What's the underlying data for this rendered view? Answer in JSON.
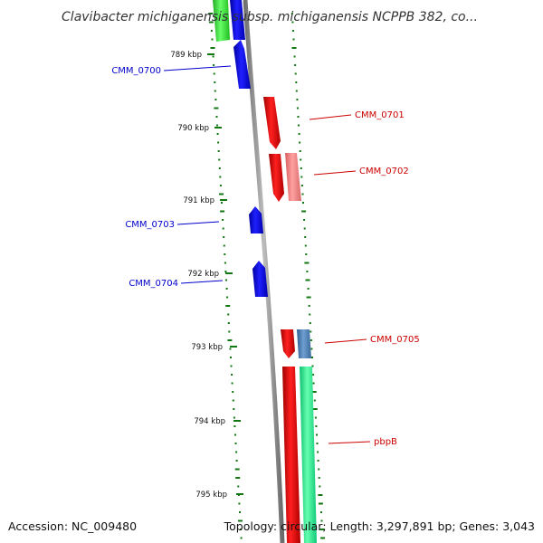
{
  "title": "Clavibacter michiganensis subsp. michiganensis NCPPB 382, co...",
  "footer": {
    "accession": "Accession: NC_009480",
    "summary": "Topology: circular; Length: 3,297,891 bp; Genes: 3,043"
  },
  "ticks": [
    {
      "label": "789 kbp"
    },
    {
      "label": "790 kbp"
    },
    {
      "label": "791 kbp"
    },
    {
      "label": "792 kbp"
    },
    {
      "label": "793 kbp"
    },
    {
      "label": "794 kbp"
    },
    {
      "label": "795 kbp"
    }
  ],
  "genes": [
    {
      "label": "CMM_0700",
      "strand": "reverse",
      "color": "#0000cc"
    },
    {
      "label": "CMM_0701",
      "strand": "forward",
      "color": "#cc0000"
    },
    {
      "label": "CMM_0702",
      "strand": "forward",
      "color": "#cc0000"
    },
    {
      "label": "CMM_0703",
      "strand": "reverse",
      "color": "#0000cc"
    },
    {
      "label": "CMM_0704",
      "strand": "reverse",
      "color": "#0000cc"
    },
    {
      "label": "CMM_0705",
      "strand": "forward",
      "color": "#cc0000"
    },
    {
      "label": "pbpB",
      "strand": "forward",
      "color": "#cc0000"
    }
  ],
  "colors": {
    "backbone": "#8a8a8a",
    "forward_cds": "#ee0000",
    "reverse_cds": "#0000ee",
    "trna_light": "#f08080",
    "steelblue_feature": "#4a7fb5",
    "green_feature": "#33dd33",
    "spring_green_feature": "#22ee88",
    "gc_dots": "#117711"
  }
}
